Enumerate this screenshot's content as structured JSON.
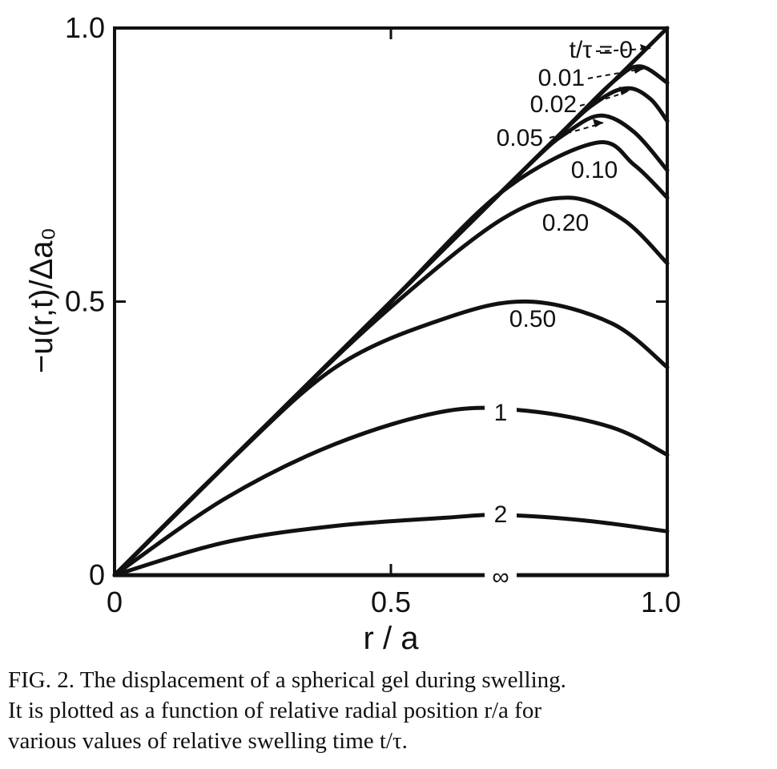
{
  "chart_data": {
    "type": "line",
    "xlabel": "r / a",
    "ylabel": "−u(r,t)/Δa₀",
    "xlim": [
      0,
      1.0
    ],
    "ylim": [
      0,
      1.0
    ],
    "x_ticks": [
      "0",
      "0.5",
      "1.0"
    ],
    "y_ticks": [
      "0",
      "0.5",
      "1.0"
    ],
    "grid": false,
    "legend": "inline labels",
    "label_prefix": "t/τ =",
    "series": [
      {
        "label": "0",
        "x": [
          0,
          0.25,
          0.5,
          0.75,
          1.0
        ],
        "y": [
          0,
          0.25,
          0.5,
          0.75,
          1.0
        ]
      },
      {
        "label": "0.01",
        "x": [
          0,
          0.5,
          0.8,
          0.9,
          0.95,
          1.0
        ],
        "y": [
          0,
          0.5,
          0.8,
          0.9,
          0.93,
          0.9
        ]
      },
      {
        "label": "0.02",
        "x": [
          0,
          0.5,
          0.8,
          0.88,
          0.93,
          0.97,
          1.0
        ],
        "y": [
          0,
          0.5,
          0.8,
          0.87,
          0.89,
          0.87,
          0.83
        ]
      },
      {
        "label": "0.05",
        "x": [
          0,
          0.5,
          0.75,
          0.82,
          0.88,
          0.94,
          1.0
        ],
        "y": [
          0,
          0.5,
          0.75,
          0.81,
          0.84,
          0.81,
          0.74
        ]
      },
      {
        "label": "0.10",
        "x": [
          0,
          0.3,
          0.5,
          0.7,
          0.87,
          0.94,
          1.0
        ],
        "y": [
          0,
          0.3,
          0.5,
          0.7,
          0.79,
          0.75,
          0.69
        ]
      },
      {
        "label": "0.20",
        "x": [
          0,
          0.3,
          0.5,
          0.7,
          0.82,
          0.92,
          1.0
        ],
        "y": [
          0,
          0.3,
          0.49,
          0.65,
          0.69,
          0.65,
          0.57
        ]
      },
      {
        "label": "0.50",
        "x": [
          0,
          0.2,
          0.4,
          0.6,
          0.75,
          0.9,
          1.0
        ],
        "y": [
          0,
          0.2,
          0.38,
          0.47,
          0.5,
          0.46,
          0.38
        ]
      },
      {
        "label": "1",
        "x": [
          0,
          0.2,
          0.4,
          0.6,
          0.75,
          0.9,
          1.0
        ],
        "y": [
          0,
          0.14,
          0.24,
          0.3,
          0.3,
          0.27,
          0.22
        ]
      },
      {
        "label": "2",
        "x": [
          0,
          0.2,
          0.4,
          0.6,
          0.7,
          0.85,
          1.0
        ],
        "y": [
          0,
          0.06,
          0.09,
          0.105,
          0.11,
          0.1,
          0.08
        ]
      },
      {
        "label": "∞",
        "x": [
          0,
          0.5,
          1.0
        ],
        "y": [
          0,
          0,
          0
        ]
      }
    ]
  },
  "caption": {
    "line1": "FIG. 2.  The displacement of a spherical gel during swelling.",
    "line2": "It is plotted as a function of relative radial position r/a for",
    "line3": "various values of relative swelling time t/τ."
  }
}
